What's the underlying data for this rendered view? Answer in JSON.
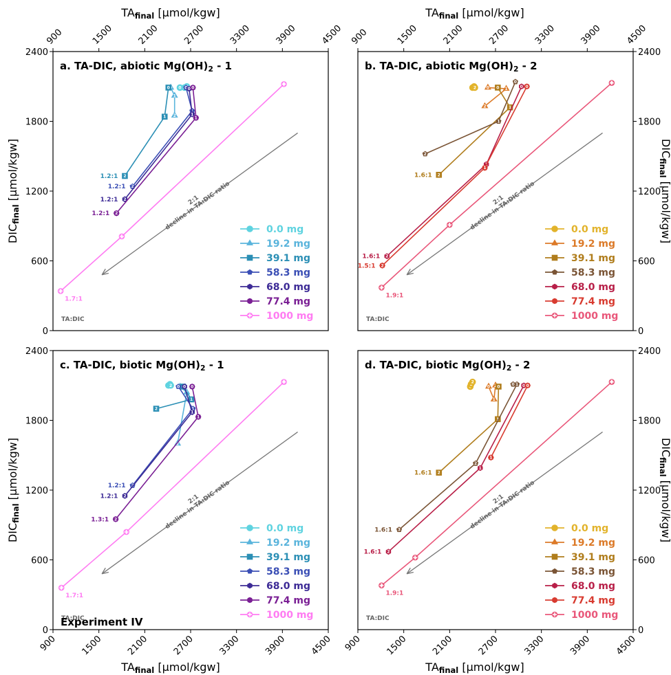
{
  "figure": {
    "top_xlabel": "TA",
    "top_xlabel_sub": "final",
    "bottom_xlabel": "TA",
    "bottom_xlabel_sub": "final",
    "x_unit": " [µmol/kgw]",
    "ylabel": "DIC",
    "ylabel_sub": "final",
    "y_unit": " [µmol/kgw]",
    "experiment_label": "Experiment IV",
    "ta_dic_label": "TA:DIC",
    "guide_label_1": "2:1",
    "guide_label_2": "decline in TA:DIC ratio"
  },
  "chart_data": [
    {
      "type": "line",
      "title": "a. TA-DIC, abiotic Mg(OH)",
      "title_sub": "2",
      "title_tail": " - 1",
      "xlim": [
        900,
        4500
      ],
      "ylim": [
        0,
        2400
      ],
      "xticks": [
        900,
        1500,
        2100,
        2700,
        3300,
        3900,
        4500
      ],
      "yticks": [
        0,
        600,
        1200,
        1800,
        2400
      ],
      "grid": false,
      "legend_position": "lower-right",
      "series": [
        {
          "name": "0.0 mg",
          "color": "#5fd3e0",
          "marker": "circle",
          "points": [
            [
              2560,
              2090
            ],
            [
              2620,
              2090
            ],
            [
              2650,
              2100
            ]
          ]
        },
        {
          "name": "19.2 mg",
          "color": "#5ab4dc",
          "marker": "triangle",
          "points": [
            [
              2440,
              2090
            ],
            [
              2490,
              2020
            ],
            [
              2490,
              1850
            ]
          ]
        },
        {
          "name": "39.1 mg",
          "color": "#2b8fb5",
          "marker": "square",
          "points": [
            [
              2410,
              2090
            ],
            [
              2360,
              1840
            ],
            [
              1840,
              1330
            ]
          ],
          "labels": [
            {
              "text": "1.2:1",
              "at": [
                1840,
                1330
              ]
            }
          ]
        },
        {
          "name": "58.3 mg",
          "color": "#3b4fb5",
          "marker": "pentagon",
          "points": [
            [
              2640,
              2090
            ],
            [
              2720,
              1890
            ],
            [
              1940,
              1240
            ]
          ],
          "labels": [
            {
              "text": "1.2:1",
              "at": [
                1940,
                1240
              ]
            }
          ]
        },
        {
          "name": "68.0 mg",
          "color": "#3d2b96",
          "marker": "hexagon",
          "points": [
            [
              2680,
              2080
            ],
            [
              2720,
              1860
            ],
            [
              1840,
              1130
            ]
          ],
          "labels": [
            {
              "text": "1.2:1",
              "at": [
                1840,
                1130
              ]
            }
          ]
        },
        {
          "name": "77.4 mg",
          "color": "#7a1f94",
          "marker": "octagon",
          "points": [
            [
              2730,
              2090
            ],
            [
              2770,
              1830
            ],
            [
              1730,
              1010
            ]
          ],
          "labels": [
            {
              "text": "1.2:1",
              "at": [
                1730,
                1010
              ]
            }
          ]
        },
        {
          "name": "1000 mg",
          "color": "#ff7cf2",
          "marker": "plus",
          "points": [
            [
              3920,
              2120
            ],
            [
              1800,
              810
            ],
            [
              1000,
              340
            ]
          ],
          "labels": [
            {
              "text": "1.7:1",
              "at": [
                1000,
                340
              ]
            }
          ]
        }
      ]
    },
    {
      "type": "line",
      "title": "b. TA-DIC, abiotic Mg(OH)",
      "title_sub": "2",
      "title_tail": " - 2",
      "xlim": [
        900,
        4500
      ],
      "ylim": [
        0,
        2400
      ],
      "xticks": [
        900,
        1500,
        2100,
        2700,
        3300,
        3900,
        4500
      ],
      "yticks": [
        0,
        600,
        1200,
        1800,
        2400
      ],
      "grid": false,
      "legend_position": "lower-right",
      "series": [
        {
          "name": "0.0 mg",
          "color": "#e2b32b",
          "marker": "circle",
          "points": [
            [
              2400,
              2090
            ],
            [
              2420,
              2100
            ],
            [
              2430,
              2090
            ]
          ]
        },
        {
          "name": "19.2 mg",
          "color": "#dc7a28",
          "marker": "triangle",
          "points": [
            [
              2600,
              2090
            ],
            [
              2840,
              2080
            ],
            [
              2560,
              1930
            ]
          ]
        },
        {
          "name": "39.1 mg",
          "color": "#b07d1c",
          "marker": "square",
          "points": [
            [
              2730,
              2090
            ],
            [
              2890,
              1920
            ],
            [
              1960,
              1340
            ]
          ],
          "labels": [
            {
              "text": "1.6:1",
              "at": [
                1960,
                1340
              ]
            }
          ]
        },
        {
          "name": "58.3 mg",
          "color": "#7a5435",
          "marker": "pentagon",
          "points": [
            [
              2960,
              2140
            ],
            [
              2740,
              1800
            ],
            [
              1780,
              1520
            ]
          ]
        },
        {
          "name": "68.0 mg",
          "color": "#b81f48",
          "marker": "hexagon",
          "points": [
            [
              3040,
              2100
            ],
            [
              2580,
              1430
            ],
            [
              1280,
              640
            ]
          ],
          "labels": [
            {
              "text": "1.6:1",
              "at": [
                1280,
                640
              ]
            }
          ]
        },
        {
          "name": "77.4 mg",
          "color": "#d83b30",
          "marker": "octagon",
          "points": [
            [
              3110,
              2100
            ],
            [
              2560,
              1400
            ],
            [
              1220,
              560
            ]
          ],
          "labels": [
            {
              "text": "1.5:1",
              "at": [
                1220,
                560
              ]
            }
          ]
        },
        {
          "name": "1000 mg",
          "color": "#e9577a",
          "marker": "plus",
          "points": [
            [
              4220,
              2130
            ],
            [
              2100,
              910
            ],
            [
              1210,
              370
            ]
          ],
          "labels": [
            {
              "text": "1.9:1",
              "at": [
                1210,
                370
              ]
            }
          ]
        }
      ]
    },
    {
      "type": "line",
      "title": "c. TA-DIC, biotic Mg(OH)",
      "title_sub": "2",
      "title_tail": " - 1",
      "xlim": [
        900,
        4500
      ],
      "ylim": [
        0,
        2400
      ],
      "xticks": [
        900,
        1500,
        2100,
        2700,
        3300,
        3900,
        4500
      ],
      "yticks": [
        0,
        600,
        1200,
        1800,
        2400
      ],
      "grid": false,
      "legend_position": "lower-right",
      "series": [
        {
          "name": "0.0 mg",
          "color": "#5fd3e0",
          "marker": "circle",
          "points": [
            [
              2410,
              2100
            ],
            [
              2430,
              2110
            ],
            [
              2440,
              2100
            ]
          ]
        },
        {
          "name": "19.2 mg",
          "color": "#5ab4dc",
          "marker": "triangle",
          "points": [
            [
              2560,
              2090
            ],
            [
              2650,
              2040
            ],
            [
              2530,
              1600
            ]
          ]
        },
        {
          "name": "39.1 mg",
          "color": "#2b8fb5",
          "marker": "square",
          "points": [
            [
              2600,
              2090
            ],
            [
              2710,
              1980
            ],
            [
              2250,
              1900
            ]
          ]
        },
        {
          "name": "58.3 mg",
          "color": "#3b4fb5",
          "marker": "pentagon",
          "points": [
            [
              2540,
              2090
            ],
            [
              2730,
              1900
            ],
            [
              1940,
              1240
            ]
          ],
          "labels": [
            {
              "text": "1.2:1",
              "at": [
                1940,
                1240
              ]
            }
          ]
        },
        {
          "name": "68.0 mg",
          "color": "#3d2b96",
          "marker": "hexagon",
          "points": [
            [
              2620,
              2090
            ],
            [
              2720,
              1870
            ],
            [
              1840,
              1150
            ]
          ],
          "labels": [
            {
              "text": "1.2:1",
              "at": [
                1840,
                1150
              ]
            }
          ]
        },
        {
          "name": "77.4 mg",
          "color": "#7a1f94",
          "marker": "octagon",
          "points": [
            [
              2720,
              2090
            ],
            [
              2800,
              1830
            ],
            [
              1720,
              950
            ]
          ],
          "labels": [
            {
              "text": "1.3:1",
              "at": [
                1720,
                950
              ]
            }
          ]
        },
        {
          "name": "1000 mg",
          "color": "#ff7cf2",
          "marker": "plus",
          "points": [
            [
              3920,
              2130
            ],
            [
              1860,
              840
            ],
            [
              1010,
              360
            ]
          ],
          "labels": [
            {
              "text": "1.7:1",
              "at": [
                1010,
                360
              ]
            }
          ]
        }
      ]
    },
    {
      "type": "line",
      "title": "d. TA-DIC, biotic Mg(OH)",
      "title_sub": "2",
      "title_tail": " - 2",
      "xlim": [
        900,
        4500
      ],
      "ylim": [
        0,
        2400
      ],
      "xticks": [
        900,
        1500,
        2100,
        2700,
        3300,
        3900,
        4500
      ],
      "yticks": [
        0,
        600,
        1200,
        1800,
        2400
      ],
      "grid": false,
      "legend_position": "lower-right",
      "series": [
        {
          "name": "0.0 mg",
          "color": "#e2b32b",
          "marker": "circle",
          "points": [
            [
              2370,
              2090
            ],
            [
              2380,
              2110
            ],
            [
              2400,
              2130
            ]
          ]
        },
        {
          "name": "19.2 mg",
          "color": "#dc7a28",
          "marker": "triangle",
          "points": [
            [
              2610,
              2090
            ],
            [
              2680,
              1980
            ],
            [
              2700,
              2100
            ]
          ]
        },
        {
          "name": "39.1 mg",
          "color": "#b07d1c",
          "marker": "square",
          "points": [
            [
              2740,
              2090
            ],
            [
              2730,
              1810
            ],
            [
              1960,
              1350
            ]
          ],
          "labels": [
            {
              "text": "1.6:1",
              "at": [
                1960,
                1350
              ]
            }
          ]
        },
        {
          "name": "58.3 mg",
          "color": "#7a5435",
          "marker": "pentagon",
          "points": [
            [
              2930,
              2110
            ],
            [
              2980,
              2110
            ],
            [
              2440,
              1430
            ],
            [
              1440,
              860
            ]
          ],
          "labels": [
            {
              "text": "1.6:1",
              "at": [
                1440,
                860
              ]
            }
          ]
        },
        {
          "name": "68.0 mg",
          "color": "#b81f48",
          "marker": "hexagon",
          "points": [
            [
              3070,
              2100
            ],
            [
              2500,
              1390
            ],
            [
              1300,
              670
            ]
          ],
          "labels": [
            {
              "text": "1.6:1",
              "at": [
                1300,
                670
              ]
            }
          ]
        },
        {
          "name": "77.4 mg",
          "color": "#d83b30",
          "marker": "octagon",
          "points": [
            [
              3120,
              2100
            ],
            [
              2640,
              1480
            ]
          ]
        },
        {
          "name": "1000 mg",
          "color": "#e9577a",
          "marker": "plus",
          "points": [
            [
              4220,
              2130
            ],
            [
              1650,
              620
            ],
            [
              1210,
              380
            ]
          ],
          "labels": [
            {
              "text": "1.9:1",
              "at": [
                1210,
                380
              ]
            }
          ]
        }
      ]
    }
  ]
}
